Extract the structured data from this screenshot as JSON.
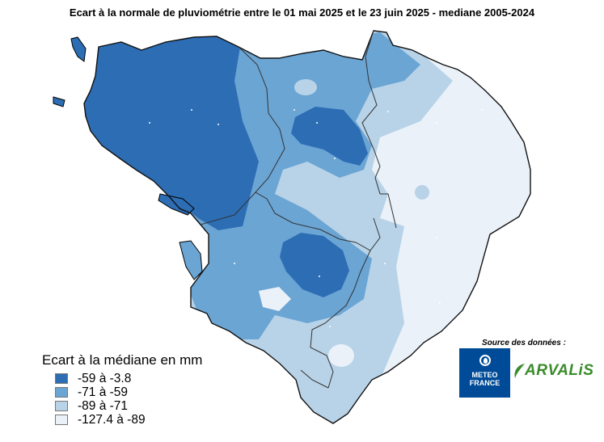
{
  "title": "Ecart à la normale de pluviométrie entre le 01 mai 2025 et le 23 juin 2025 - mediane 2005-2024",
  "legend": {
    "title": "Ecart à  la médiane en mm",
    "classes": [
      {
        "label": "-59  à  -3.8",
        "color": "#2c6db4"
      },
      {
        "label": "-71  à  -59",
        "color": "#6ba5d4"
      },
      {
        "label": "-89  à  -71",
        "color": "#b8d3e8"
      },
      {
        "label": "-127.4  à  -89",
        "color": "#eaf1f9"
      }
    ]
  },
  "source": {
    "label": "Source des données :",
    "meteo_france_line1": "METEO",
    "meteo_france_line2": "FRANCE",
    "arvalis": "ARVALiS"
  }
}
